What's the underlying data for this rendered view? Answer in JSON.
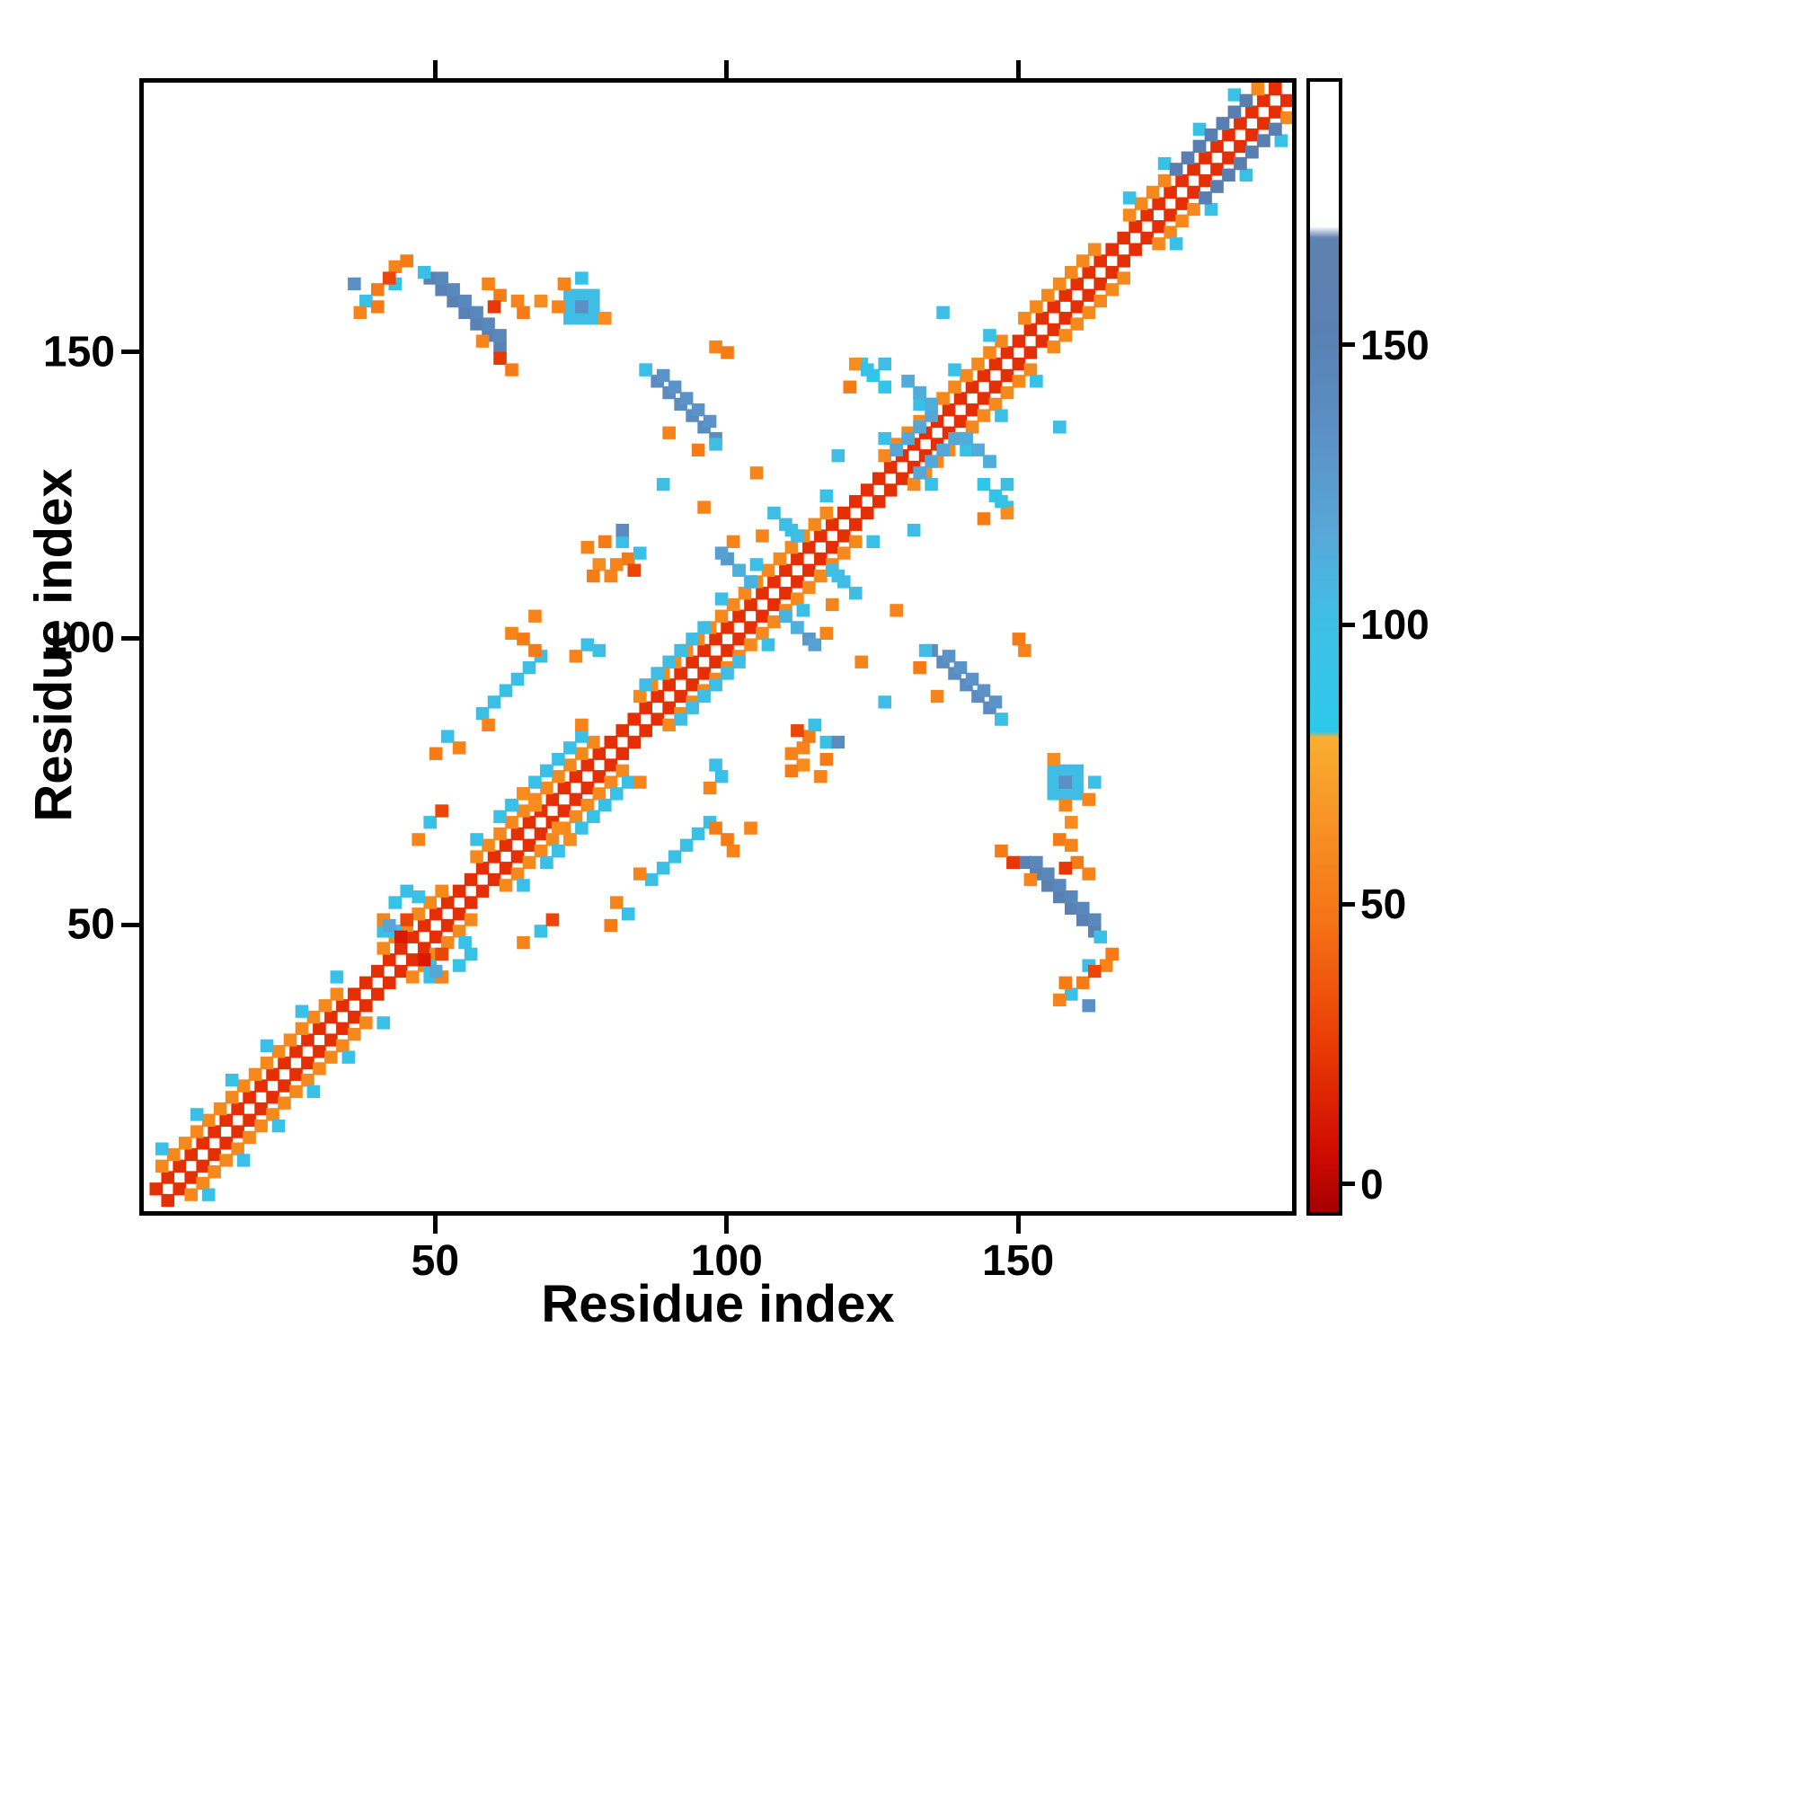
{
  "chart_data": {
    "type": "heatmap",
    "title": "",
    "xlabel": "Residue index",
    "ylabel": "Residue index",
    "xlim": [
      0,
      197
    ],
    "ylim": [
      0,
      197
    ],
    "xticks": [
      50,
      100,
      150
    ],
    "yticks": [
      50,
      100,
      150
    ],
    "grid": false,
    "legend": "none",
    "description": "Protein residue-residue contact map, symmetric about the main diagonal; near-diagonal contacts red/orange, long-range contacts cyan/blue per colorbar",
    "cell_size": 2,
    "colormap_stops": [
      [
        0,
        "#b20000"
      ],
      [
        12,
        "#d81000"
      ],
      [
        28,
        "#ea4105"
      ],
      [
        50,
        "#f57b16"
      ],
      [
        68,
        "#f89b27"
      ],
      [
        82,
        "#f9ad31"
      ],
      [
        84,
        "#2dc8ea"
      ],
      [
        100,
        "#3fbde4"
      ],
      [
        114,
        "#53aad9"
      ],
      [
        130,
        "#5b90c5"
      ],
      [
        150,
        "#597fb2"
      ],
      [
        172,
        "#6b87b0"
      ],
      [
        197,
        "#93a5c2"
      ]
    ],
    "colorbar": {
      "ticks": [
        0,
        50,
        100,
        150
      ],
      "gradient_stops": [
        [
          0.0,
          "#a50000"
        ],
        [
          0.05,
          "#cf0a00"
        ],
        [
          0.15,
          "#ea3c05"
        ],
        [
          0.26,
          "#f57416"
        ],
        [
          0.4,
          "#f9a62e"
        ],
        [
          0.42,
          "#f9ae32"
        ],
        [
          0.425,
          "#2cc9ec"
        ],
        [
          0.52,
          "#3fc0e6"
        ],
        [
          0.6,
          "#57a8d8"
        ],
        [
          0.68,
          "#5b92c6"
        ],
        [
          0.78,
          "#5a80b2"
        ],
        [
          0.862,
          "#5f82b0"
        ],
        [
          0.872,
          "#ffffff"
        ],
        [
          1.0,
          "#ffffff"
        ]
      ]
    },
    "bands": [
      {
        "i0": 1,
        "i1": 194,
        "offset": 2,
        "value": 22
      },
      {
        "i0": 2,
        "i1": 33,
        "offset": 5,
        "value": 58
      },
      {
        "i0": 40,
        "i1": 50,
        "offset": 5,
        "value": 58
      },
      {
        "i0": 56,
        "i1": 76,
        "offset": 5,
        "value": 58
      },
      {
        "i0": 84,
        "i1": 96,
        "offset": 5,
        "value": 58
      },
      {
        "i0": 98,
        "i1": 116,
        "offset": 5,
        "value": 58
      },
      {
        "i0": 126,
        "i1": 146,
        "offset": 5,
        "value": 58
      },
      {
        "i0": 150,
        "i1": 162,
        "offset": 5,
        "value": 58
      },
      {
        "i0": 168,
        "i1": 193,
        "offset": 5,
        "value": 58
      }
    ],
    "fleck_regions": [
      {
        "i0": 2,
        "i1": 33
      },
      {
        "i0": 40,
        "i1": 50
      },
      {
        "i0": 56,
        "i1": 76
      },
      {
        "i0": 98,
        "i1": 116
      },
      {
        "i0": 126,
        "i1": 146
      },
      {
        "i0": 168,
        "i1": 190
      }
    ],
    "fleck_offset": 8,
    "fleck_step": 6,
    "fleck_value": 95,
    "par_segments": [
      {
        "i0": 57,
        "i1": 67,
        "offset": 29,
        "value": 97
      },
      {
        "i0": 85,
        "i1": 95,
        "offset": 6,
        "value": 100
      },
      {
        "i0": 60,
        "i1": 72,
        "offset": 8,
        "value": 95
      },
      {
        "i0": 128,
        "i1": 134,
        "offset": 4,
        "value": 116
      },
      {
        "i0": 176,
        "i1": 188,
        "offset": 5,
        "value": 150
      }
    ],
    "anti_segments": [
      {
        "ci": 45,
        "cj": 45,
        "half": 5,
        "value": 92,
        "skip": 4
      },
      {
        "ci": 68,
        "cj": 68,
        "half": 4,
        "value": 60,
        "skip": 4
      },
      {
        "ci": 106,
        "cj": 106,
        "half": 7,
        "value": 108,
        "skip": 4
      },
      {
        "ci": 137,
        "cj": 137,
        "half": 7,
        "value": 112,
        "skip": 4
      },
      {
        "ci": 54,
        "cj": 156,
        "half": 6,
        "value": 148,
        "skip": 0
      },
      {
        "ci": 55,
        "cj": 157,
        "half": 5,
        "value": 140,
        "skip": 0
      },
      {
        "ci": 91,
        "cj": 140,
        "half": 6,
        "value": 135,
        "skip": 0
      },
      {
        "ci": 92,
        "cj": 141,
        "half": 4,
        "value": 128,
        "skip": 0
      },
      {
        "ci": 109,
        "cj": 119,
        "half": 2,
        "value": 100,
        "skip": 0
      },
      {
        "ci": 124,
        "cj": 145,
        "half": 2,
        "value": 85,
        "skip": 0
      }
    ],
    "blobs": [
      {
        "i": 72,
        "j": 155,
        "w": 5,
        "h": 5,
        "value": 100
      }
    ],
    "cells": [
      [
        60,
        148,
        25
      ],
      [
        62,
        146,
        50
      ],
      [
        57,
        151,
        55
      ],
      [
        42,
        161,
        95
      ],
      [
        39,
        160,
        50
      ],
      [
        47,
        163,
        95
      ],
      [
        70,
        157,
        55
      ],
      [
        67,
        158,
        60
      ],
      [
        64,
        156,
        50
      ],
      [
        78,
        155,
        60
      ],
      [
        74,
        162,
        95
      ],
      [
        71,
        161,
        55
      ],
      [
        74,
        157,
        130
      ],
      [
        85,
        146,
        95
      ],
      [
        97,
        133,
        100
      ],
      [
        94,
        132,
        50
      ],
      [
        121,
        147,
        60
      ],
      [
        123,
        146,
        95
      ],
      [
        120,
        143,
        50
      ],
      [
        126,
        147,
        100
      ],
      [
        97,
        150,
        55
      ],
      [
        99,
        149,
        50
      ],
      [
        105,
        117,
        55
      ],
      [
        80,
        112,
        55
      ],
      [
        82,
        113,
        50
      ],
      [
        83,
        111,
        30
      ],
      [
        79,
        110,
        55
      ],
      [
        84,
        114,
        95
      ],
      [
        77,
        112,
        60
      ],
      [
        75,
        115,
        55
      ],
      [
        76,
        110,
        50
      ],
      [
        81,
        116,
        95
      ],
      [
        78,
        116,
        50
      ],
      [
        81,
        118,
        135
      ],
      [
        58,
        84,
        55
      ],
      [
        66,
        97,
        50
      ],
      [
        74,
        84,
        55
      ],
      [
        51,
        82,
        95
      ],
      [
        53,
        80,
        55
      ],
      [
        49,
        79,
        50
      ],
      [
        62,
        100,
        55
      ],
      [
        64,
        99,
        50
      ],
      [
        66,
        103,
        55
      ],
      [
        75,
        98,
        95
      ],
      [
        77,
        97,
        95
      ],
      [
        73,
        96,
        55
      ],
      [
        42,
        53,
        90
      ],
      [
        44,
        55,
        95
      ],
      [
        40,
        50,
        55
      ],
      [
        41,
        49,
        115
      ],
      [
        43,
        47,
        15
      ],
      [
        44,
        50,
        30
      ],
      [
        48,
        67,
        95
      ],
      [
        46,
        64,
        55
      ],
      [
        50,
        69,
        30
      ],
      [
        58,
        161,
        55
      ],
      [
        60,
        159,
        50
      ],
      [
        63,
        158,
        55
      ],
      [
        59,
        157,
        25
      ],
      [
        42,
        164,
        55
      ],
      [
        44,
        165,
        50
      ],
      [
        41,
        162,
        30
      ],
      [
        35,
        161,
        130
      ],
      [
        37,
        158,
        95
      ],
      [
        36,
        156,
        55
      ],
      [
        39,
        157,
        50
      ],
      [
        88,
        126,
        100
      ],
      [
        95,
        122,
        55
      ],
      [
        100,
        116,
        55
      ],
      [
        104,
        128,
        55
      ],
      [
        136,
        156,
        100
      ],
      [
        118,
        131,
        100
      ],
      [
        89,
        135,
        55
      ],
      [
        99,
        113,
        125
      ],
      [
        98,
        114,
        120
      ]
    ]
  }
}
